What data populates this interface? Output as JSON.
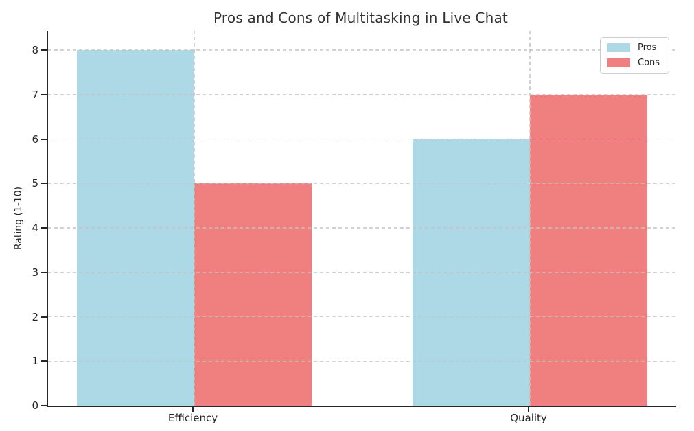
{
  "chart_data": {
    "type": "bar",
    "title": "Pros and Cons of Multitasking in Live Chat",
    "xlabel": "",
    "ylabel": "Rating (1-10)",
    "categories": [
      "Efficiency",
      "Quality"
    ],
    "series": [
      {
        "name": "Pros",
        "color": "#ADD8E6",
        "values": [
          8,
          6
        ]
      },
      {
        "name": "Cons",
        "color": "#F08080",
        "values": [
          5,
          7
        ]
      }
    ],
    "ylim": [
      0,
      8.43
    ],
    "yticks": [
      0,
      1,
      2,
      3,
      4,
      5,
      6,
      7,
      8
    ],
    "grid": true,
    "grid_style": "dashed",
    "grid_axes": "both",
    "bar_width": 0.35,
    "legend_position": "upper right"
  },
  "legend": {
    "items": [
      {
        "label": "Pros",
        "color": "#ADD8E6"
      },
      {
        "label": "Cons",
        "color": "#F08080"
      }
    ]
  },
  "colors": {
    "background": "#ffffff",
    "axis": "#262626",
    "grid": "#c3c3c3",
    "title_text": "#333333",
    "tick_text": "#262626"
  }
}
